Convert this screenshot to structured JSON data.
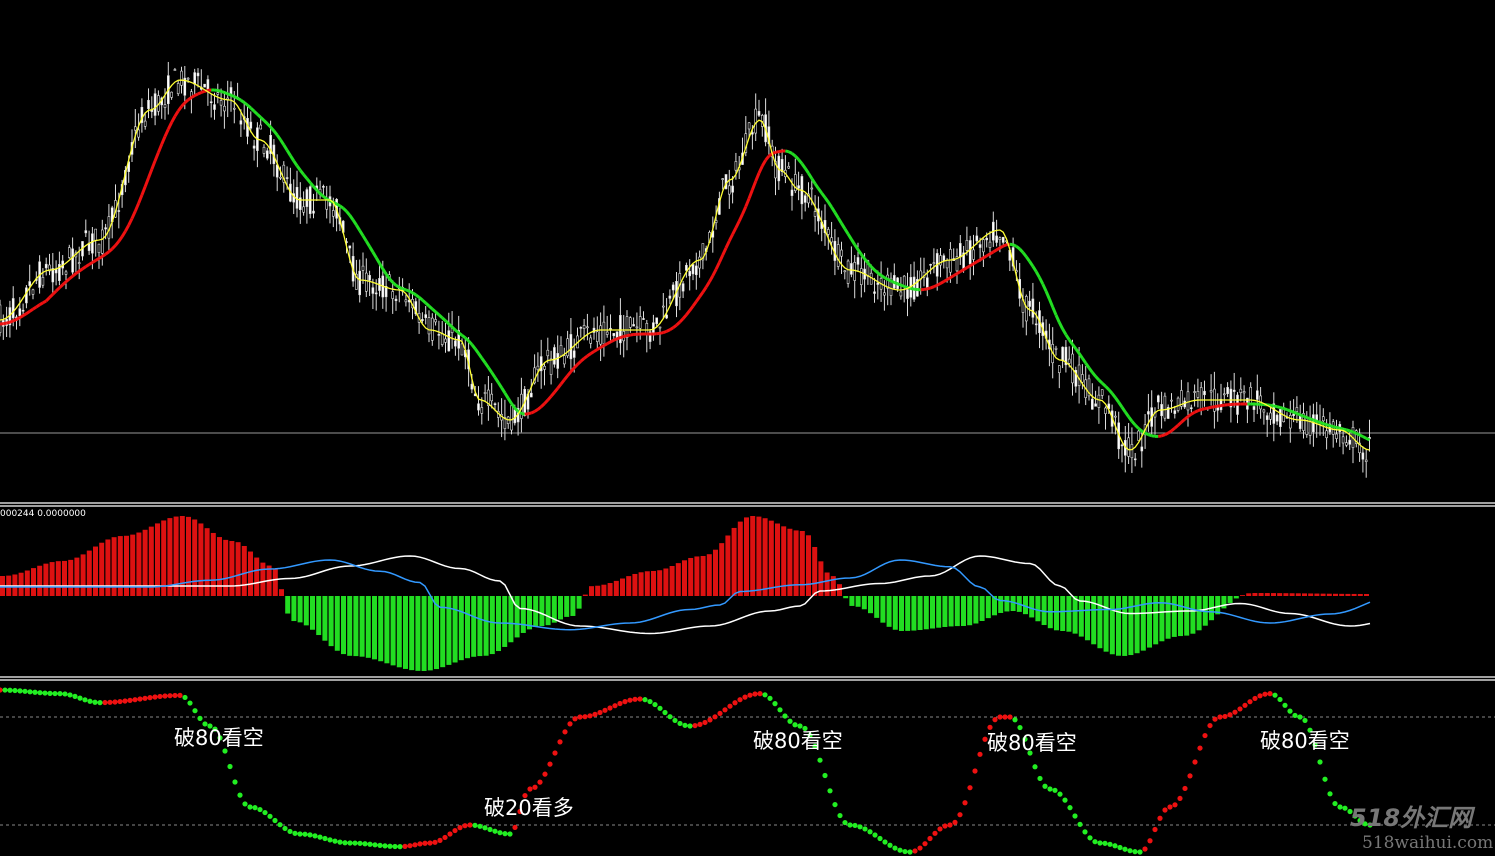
{
  "chart_data": [
    {
      "type": "candlestick",
      "panel": "price",
      "x": [
        0,
        50,
        100,
        150,
        180,
        230,
        260,
        300,
        330,
        360,
        400,
        430,
        460,
        480,
        510,
        550,
        600,
        650,
        700,
        730,
        760,
        780,
        800,
        850,
        900,
        950,
        1000,
        1030,
        1060,
        1100,
        1130,
        1160,
        1200,
        1250,
        1300,
        1340,
        1370
      ],
      "fast_ma": [
        36,
        46,
        52,
        78,
        84,
        80,
        72,
        60,
        60,
        44,
        42,
        34,
        32,
        20,
        16,
        28,
        34,
        34,
        48,
        64,
        76,
        66,
        62,
        46,
        42,
        48,
        54,
        38,
        28,
        20,
        10,
        18,
        20,
        20,
        16,
        14,
        10
      ],
      "ma_colors": {
        "fast": "#ffff33",
        "slow_up": "#ee1111",
        "slow_down": "#22dd22"
      },
      "current_price_line": true
    },
    {
      "type": "bar",
      "panel": "macd",
      "header": "000244 0.0000000",
      "x": [
        0,
        60,
        120,
        180,
        230,
        270,
        290,
        350,
        420,
        480,
        540,
        570,
        590,
        650,
        700,
        750,
        800,
        830,
        850,
        900,
        960,
        1010,
        1060,
        1120,
        1180,
        1250,
        1370
      ],
      "histogram": [
        20,
        35,
        60,
        80,
        55,
        30,
        -25,
        -60,
        -75,
        -60,
        -30,
        -20,
        10,
        25,
        40,
        80,
        65,
        20,
        -10,
        -35,
        -30,
        -15,
        -35,
        -60,
        -40,
        3,
        2
      ],
      "colors": {
        "positive": "#dd1111",
        "negative": "#22dd22",
        "signal": "#ffffff",
        "macd": "#3399ff"
      }
    },
    {
      "type": "line",
      "panel": "stochastic",
      "levels": [
        80,
        20
      ],
      "x": [
        0,
        60,
        100,
        180,
        210,
        250,
        300,
        350,
        400,
        430,
        470,
        510,
        530,
        580,
        640,
        690,
        760,
        800,
        850,
        910,
        950,
        1000,
        1010,
        1050,
        1100,
        1140,
        1170,
        1220,
        1270,
        1300,
        1340,
        1370
      ],
      "values": [
        95,
        93,
        88,
        92,
        75,
        30,
        15,
        10,
        8,
        10,
        20,
        15,
        40,
        80,
        90,
        75,
        93,
        75,
        20,
        5,
        20,
        80,
        80,
        40,
        10,
        5,
        30,
        80,
        93,
        80,
        30,
        20
      ],
      "colors": {
        "rising": "#ee1111",
        "falling": "#22ee22"
      },
      "annotations": [
        {
          "text": "破80看空",
          "x": 210
        },
        {
          "text": "破20看多",
          "x": 530
        },
        {
          "text": "破80看空",
          "x": 798
        },
        {
          "text": "破80看空",
          "x": 1032
        },
        {
          "text": "破80看空",
          "x": 1305
        }
      ]
    }
  ],
  "watermark": {
    "logo": "518外汇网",
    "url": "518waihui.com"
  }
}
